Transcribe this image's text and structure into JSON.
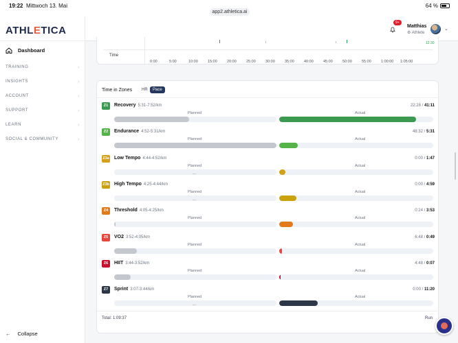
{
  "status_bar": {
    "time": "19:22",
    "date": "Mittwoch 13. Mai",
    "url": "app2.athletica.ai",
    "battery": "64 %"
  },
  "logo": {
    "text_a": "ATHL",
    "text_e": "E",
    "text_b": "TICA"
  },
  "sidebar": {
    "dashboard_label": "Dashboard",
    "items": [
      {
        "label": "TRAINING"
      },
      {
        "label": "INSIGHTS"
      },
      {
        "label": "ACCOUNT"
      },
      {
        "label": "SUPPORT"
      },
      {
        "label": "LEARN"
      },
      {
        "label": "SOCIAL & COMMUNITY"
      }
    ],
    "collapse_label": "Collapse"
  },
  "header": {
    "notification_count": "9+",
    "user_name": "Matthias",
    "user_role": "Athlete"
  },
  "top_chart": {
    "axis_label": "Time",
    "ticks": [
      "0:00",
      "5:00",
      "10:00",
      "15:00",
      "20:00",
      "25:00",
      "30:00",
      "35:00",
      "40:00",
      "45:00",
      "50:00",
      "55:00",
      "1:00:00",
      "1:05:00"
    ],
    "end_label": "12:30"
  },
  "zones_card": {
    "title": "Time in Zones",
    "tab_hr": "HR",
    "tab_pace": "Pace",
    "planned_label": "Planned",
    "actual_label": "Actual",
    "total": "Total: 1:09:37",
    "run_label": "Run",
    "zones": [
      {
        "code": "Z1",
        "name": "Recovery",
        "range": "5:31-7:52/km",
        "planned": "22:28",
        "actual": "41:11",
        "color": "#3b9a4f",
        "planned_frac": 0.46,
        "actual_frac": 0.89,
        "planned_dash": ""
      },
      {
        "code": "Z2",
        "name": "Endurance",
        "range": "4:52-5:31/km",
        "planned": "48:32",
        "actual": "5:31",
        "color": "#56b34a",
        "planned_frac": 1.0,
        "actual_frac": 0.12,
        "planned_dash": ""
      },
      {
        "code": "Z3a",
        "name": "Low Tempo",
        "range": "4:44-4:52/km",
        "planned": "0:00",
        "actual": "1:47",
        "color": "#d4a017",
        "planned_frac": 0.0,
        "actual_frac": 0.04,
        "planned_dash": "---"
      },
      {
        "code": "Z3b",
        "name": "High Tempo",
        "range": "4:25-4:44/km",
        "planned": "0:00",
        "actual": "4:59",
        "color": "#c9a20c",
        "planned_frac": 0.0,
        "actual_frac": 0.11,
        "planned_dash": "---"
      },
      {
        "code": "Z4",
        "name": "Threshold",
        "range": "4:05-4:25/km",
        "planned": "0:24",
        "actual": "3:53",
        "color": "#e07b18",
        "planned_frac": 0.01,
        "actual_frac": 0.09,
        "planned_dash": ""
      },
      {
        "code": "Z5",
        "name": "VO2",
        "range": "3:52-4:05/km",
        "planned": "6:48",
        "actual": "0:49",
        "color": "#e8453c",
        "planned_frac": 0.14,
        "actual_frac": 0.02,
        "planned_dash": ""
      },
      {
        "code": "Z6",
        "name": "HIIT",
        "range": "3:44-3:52/km",
        "planned": "4:48",
        "actual": "0:07",
        "color": "#c8102e",
        "planned_frac": 0.1,
        "actual_frac": 0.005,
        "planned_dash": ""
      },
      {
        "code": "Z7",
        "name": "Sprint",
        "range": "3:07-3:44/km",
        "planned": "0:00",
        "actual": "11:20",
        "color": "#2d3748",
        "planned_frac": 0.0,
        "actual_frac": 0.25,
        "planned_dash": "---"
      }
    ]
  }
}
